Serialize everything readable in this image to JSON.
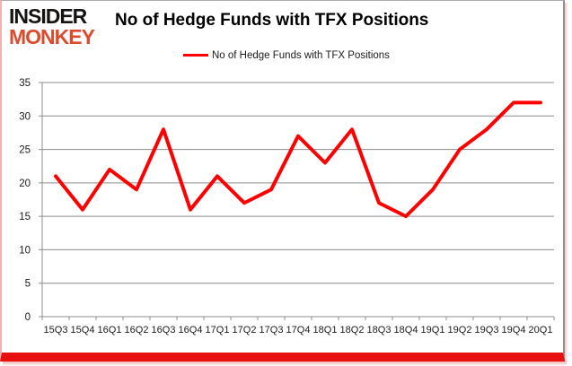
{
  "logo": {
    "line1": "INSIDER",
    "line2": "MONKEY",
    "line1_color": "#161413",
    "line2_color": "#dd4a2c"
  },
  "title": "No of Hedge Funds with TFX Positions",
  "legend": {
    "label": "No of Hedge Funds with TFX Positions",
    "swatch_color": "#fe0000"
  },
  "chart_data": {
    "type": "line",
    "title": "No of Hedge Funds with TFX Positions",
    "categories": [
      "15Q3",
      "15Q4",
      "16Q1",
      "16Q2",
      "16Q3",
      "16Q4",
      "17Q1",
      "17Q2",
      "17Q3",
      "17Q4",
      "18Q1",
      "18Q2",
      "18Q3",
      "18Q4",
      "19Q1",
      "19Q2",
      "19Q3",
      "19Q4",
      "20Q1"
    ],
    "series": [
      {
        "name": "No of Hedge Funds with TFX Positions",
        "color": "#fe0000",
        "values": [
          21,
          16,
          22,
          19,
          28,
          16,
          21,
          17,
          19,
          27,
          23,
          28,
          17,
          15,
          19,
          25,
          28,
          32,
          32
        ]
      }
    ],
    "ylim": [
      0,
      35
    ],
    "yticks": [
      0,
      5,
      10,
      15,
      20,
      25,
      30,
      35
    ],
    "grid": true,
    "legend_position": "top",
    "grid_color": "#8c8c8c",
    "axis_color": "#8c8c8c",
    "tick_label_color": "#1a1a1a"
  },
  "frame": {
    "bottom_border_color": "#e80f0f"
  }
}
